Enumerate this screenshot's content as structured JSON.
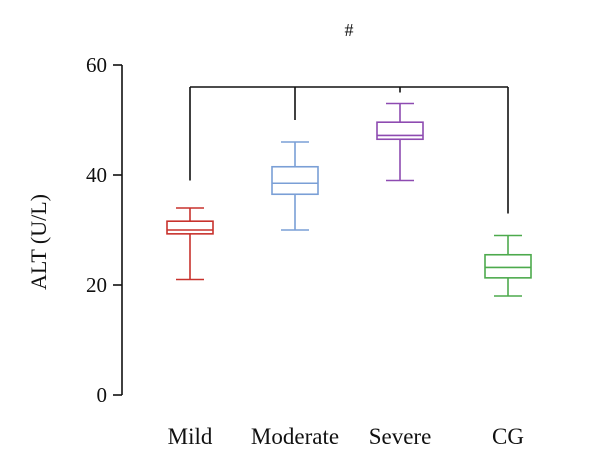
{
  "chart_data": {
    "type": "box",
    "categories": [
      "Mild",
      "Moderate",
      "Severe",
      "CG"
    ],
    "colors": [
      "#c8322d",
      "#7a9fd6",
      "#8e4bb1",
      "#4daa4d"
    ],
    "boxes": [
      {
        "category": "Mild",
        "min": 21,
        "q1": 29.3,
        "median": 30.0,
        "q3": 31.6,
        "max": 34
      },
      {
        "category": "Moderate",
        "min": 30,
        "q1": 36.5,
        "median": 38.5,
        "q3": 41.5,
        "max": 46
      },
      {
        "category": "Severe",
        "min": 39,
        "q1": 46.5,
        "median": 47.2,
        "q3": 49.6,
        "max": 53
      },
      {
        "category": "CG",
        "min": 18,
        "q1": 21.3,
        "median": 23.2,
        "q3": 25.5,
        "max": 29
      }
    ],
    "ylabel": "ALT (U/L)",
    "xlabel": "",
    "ylim": [
      0,
      60
    ],
    "yticks": [
      0,
      20,
      40,
      60
    ],
    "significance": {
      "label": "#",
      "line_value": 56,
      "drop_ends": [
        39,
        50,
        55,
        33
      ]
    },
    "grid": false
  }
}
